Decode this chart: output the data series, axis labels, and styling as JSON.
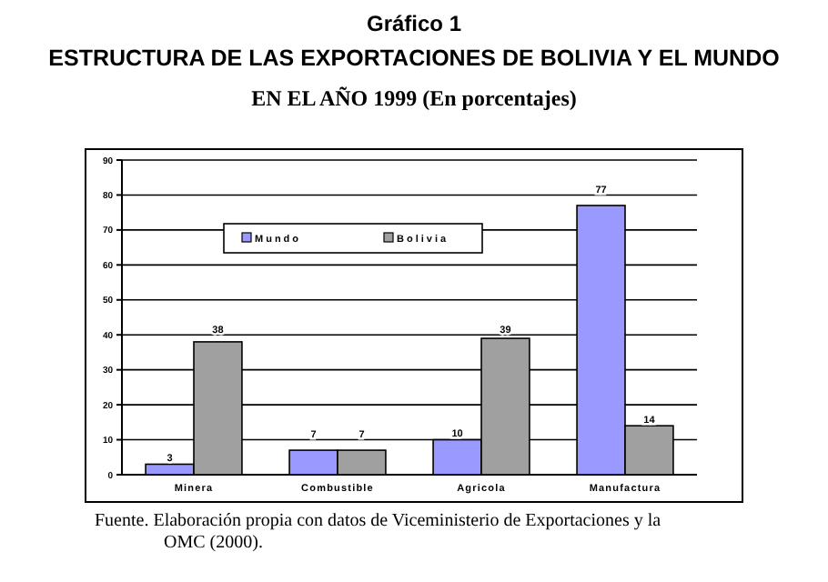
{
  "chart_data": {
    "type": "bar",
    "title": "Gráfico 1",
    "subtitle": "ESTRUCTURA DE LAS EXPORTACIONES DE BOLIVIA Y EL MUNDO\nEN EL AÑO 1999 (En porcentajes)",
    "categories": [
      "Minera",
      "Combustible",
      "Agricola",
      "Manufactura"
    ],
    "series": [
      {
        "name": "Mundo",
        "color": "#9999ff",
        "values": [
          3,
          7,
          10,
          77
        ]
      },
      {
        "name": "Bolivia",
        "color": "#a0a0a0",
        "values": [
          38,
          7,
          39,
          14
        ]
      }
    ],
    "ylim": [
      0,
      90
    ],
    "yticks": [
      0,
      10,
      20,
      30,
      40,
      50,
      60,
      70,
      80,
      90
    ],
    "grid": "y",
    "data_labels": true,
    "legend": "top",
    "annotations": [
      "Fuente. Elaboración propia con datos de Viceministerio de  Exportaciones y la OMC (2000)."
    ]
  }
}
